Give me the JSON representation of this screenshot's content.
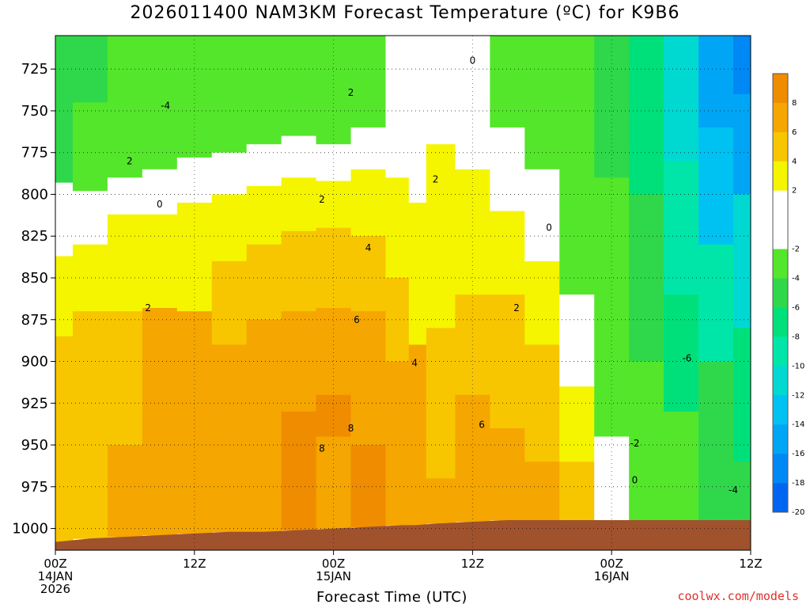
{
  "chart_data": {
    "type": "heatmap",
    "title": "2026011400 NAM3KM Forecast Temperature (ºC) for K9B6",
    "xlabel": "Forecast Time (UTC)",
    "ylabel": "",
    "credit": "coolwx.com/models",
    "x_ticks": [
      {
        "hour": 0,
        "lines": [
          "00Z",
          "14JAN",
          "2026"
        ]
      },
      {
        "hour": 12,
        "lines": [
          "12Z"
        ]
      },
      {
        "hour": 24,
        "lines": [
          "00Z",
          "15JAN"
        ]
      },
      {
        "hour": 36,
        "lines": [
          "12Z"
        ]
      },
      {
        "hour": 48,
        "lines": [
          "00Z",
          "16JAN"
        ]
      },
      {
        "hour": 60,
        "lines": [
          "12Z"
        ]
      }
    ],
    "xlim": [
      0,
      60
    ],
    "y_ticks": [
      725,
      750,
      775,
      800,
      825,
      850,
      875,
      900,
      925,
      950,
      975,
      1000
    ],
    "ylim": [
      705,
      1013
    ],
    "y_inverted": true,
    "grid": true,
    "colorbar": {
      "placement": "right",
      "levels": [
        {
          "label": "8",
          "color": "#f08c00"
        },
        {
          "label": "6",
          "color": "#f5a600"
        },
        {
          "label": "4",
          "color": "#f7c600"
        },
        {
          "label": "2",
          "color": "#f5f500"
        },
        {
          "label": "",
          "color": "#ffffff"
        },
        {
          "label": "-2",
          "color": "#ffffff"
        },
        {
          "label": "-4",
          "color": "#54e62a"
        },
        {
          "label": "-6",
          "color": "#2fd84a"
        },
        {
          "label": "-8",
          "color": "#00e07a"
        },
        {
          "label": "-10",
          "color": "#00e6a8"
        },
        {
          "label": "-12",
          "color": "#00d8d2"
        },
        {
          "label": "-14",
          "color": "#00c2f2"
        },
        {
          "label": "-16",
          "color": "#00a6f5"
        },
        {
          "label": "-18",
          "color": "#0088f5"
        },
        {
          "label": "-20",
          "color": "#0066f0"
        }
      ]
    },
    "fill_colors": {
      "ground": "#a0522d",
      "zero_contour": "#c0247a",
      "contour": "#000000"
    },
    "columns": [
      {
        "hour": 0,
        "surface": 1008,
        "bands": [
          [
            705,
            793,
            -6
          ],
          [
            793,
            837,
            -1
          ],
          [
            837,
            885,
            3
          ],
          [
            885,
            1008,
            5
          ]
        ]
      },
      {
        "hour": 3,
        "surface": 1006,
        "bands": [
          [
            705,
            745,
            -6
          ],
          [
            745,
            798,
            -4
          ],
          [
            798,
            830,
            -1
          ],
          [
            830,
            870,
            3
          ],
          [
            870,
            1006,
            5
          ]
        ]
      },
      {
        "hour": 6,
        "surface": 1005,
        "bands": [
          [
            705,
            760,
            -5
          ],
          [
            760,
            790,
            -4
          ],
          [
            790,
            812,
            -1
          ],
          [
            812,
            870,
            3
          ],
          [
            870,
            950,
            5
          ],
          [
            950,
            1005,
            7
          ]
        ]
      },
      {
        "hour": 9,
        "surface": 1004,
        "bands": [
          [
            705,
            755,
            -5
          ],
          [
            755,
            785,
            -4
          ],
          [
            785,
            812,
            -1
          ],
          [
            812,
            868,
            3
          ],
          [
            868,
            1004,
            7
          ]
        ]
      },
      {
        "hour": 12,
        "surface": 1003,
        "bands": [
          [
            705,
            740,
            -5
          ],
          [
            740,
            778,
            -4
          ],
          [
            778,
            805,
            -1
          ],
          [
            805,
            870,
            3
          ],
          [
            870,
            1003,
            7
          ]
        ]
      },
      {
        "hour": 15,
        "surface": 1002,
        "bands": [
          [
            705,
            730,
            -5
          ],
          [
            730,
            775,
            -4
          ],
          [
            775,
            800,
            -1
          ],
          [
            800,
            840,
            3
          ],
          [
            840,
            890,
            5
          ],
          [
            890,
            1002,
            7
          ]
        ]
      },
      {
        "hour": 18,
        "surface": 1002,
        "bands": [
          [
            705,
            770,
            -4
          ],
          [
            770,
            795,
            -1
          ],
          [
            795,
            830,
            3
          ],
          [
            830,
            875,
            5
          ],
          [
            875,
            1002,
            7
          ]
        ]
      },
      {
        "hour": 21,
        "surface": 1001,
        "bands": [
          [
            705,
            765,
            -4
          ],
          [
            765,
            790,
            -1
          ],
          [
            790,
            822,
            3
          ],
          [
            822,
            870,
            5
          ],
          [
            870,
            930,
            7
          ],
          [
            930,
            1001,
            9
          ]
        ]
      },
      {
        "hour": 24,
        "surface": 1000,
        "bands": [
          [
            705,
            770,
            -4
          ],
          [
            770,
            792,
            -1
          ],
          [
            792,
            820,
            3
          ],
          [
            820,
            868,
            5
          ],
          [
            868,
            920,
            7
          ],
          [
            920,
            945,
            9
          ],
          [
            945,
            1000,
            7
          ]
        ]
      },
      {
        "hour": 27,
        "surface": 999,
        "bands": [
          [
            705,
            760,
            -4
          ],
          [
            760,
            785,
            -1
          ],
          [
            785,
            825,
            3
          ],
          [
            825,
            870,
            5
          ],
          [
            870,
            950,
            7
          ],
          [
            950,
            999,
            9
          ]
        ]
      },
      {
        "hour": 30,
        "surface": 998,
        "bands": [
          [
            705,
            790,
            -1
          ],
          [
            790,
            850,
            3
          ],
          [
            850,
            900,
            5
          ],
          [
            900,
            998,
            7
          ]
        ]
      },
      {
        "hour": 31,
        "surface": 998,
        "bands": [
          [
            705,
            805,
            -1
          ],
          [
            805,
            890,
            3
          ],
          [
            890,
            998,
            7
          ]
        ]
      },
      {
        "hour": 33,
        "surface": 997,
        "bands": [
          [
            705,
            770,
            -1
          ],
          [
            770,
            880,
            3
          ],
          [
            880,
            970,
            5
          ],
          [
            970,
            997,
            7
          ]
        ]
      },
      {
        "hour": 36,
        "surface": 996,
        "bands": [
          [
            705,
            785,
            -1
          ],
          [
            785,
            860,
            3
          ],
          [
            860,
            920,
            5
          ],
          [
            920,
            996,
            7
          ]
        ]
      },
      {
        "hour": 39,
        "surface": 995,
        "bands": [
          [
            705,
            760,
            -4
          ],
          [
            760,
            810,
            -1
          ],
          [
            810,
            860,
            3
          ],
          [
            860,
            940,
            5
          ],
          [
            940,
            995,
            7
          ]
        ]
      },
      {
        "hour": 42,
        "surface": 995,
        "bands": [
          [
            705,
            785,
            -4
          ],
          [
            785,
            840,
            -1
          ],
          [
            840,
            890,
            3
          ],
          [
            890,
            960,
            5
          ],
          [
            960,
            995,
            7
          ]
        ]
      },
      {
        "hour": 45,
        "surface": 995,
        "bands": [
          [
            705,
            790,
            -5
          ],
          [
            790,
            860,
            -4
          ],
          [
            860,
            915,
            -1
          ],
          [
            915,
            960,
            3
          ],
          [
            960,
            995,
            5
          ]
        ]
      },
      {
        "hour": 48,
        "surface": 995,
        "bands": [
          [
            705,
            790,
            -7
          ],
          [
            790,
            880,
            -5
          ],
          [
            880,
            945,
            -4
          ],
          [
            945,
            995,
            -1
          ]
        ]
      },
      {
        "hour": 51,
        "surface": 995,
        "bands": [
          [
            705,
            800,
            -9
          ],
          [
            800,
            900,
            -7
          ],
          [
            900,
            960,
            -5
          ],
          [
            960,
            995,
            -4
          ]
        ]
      },
      {
        "hour": 54,
        "surface": 995,
        "bands": [
          [
            705,
            780,
            -12
          ],
          [
            780,
            860,
            -10
          ],
          [
            860,
            930,
            -8
          ],
          [
            930,
            995,
            -5
          ]
        ]
      },
      {
        "hour": 57,
        "surface": 995,
        "bands": [
          [
            705,
            760,
            -16
          ],
          [
            760,
            830,
            -14
          ],
          [
            830,
            900,
            -11
          ],
          [
            900,
            995,
            -7
          ]
        ]
      },
      {
        "hour": 60,
        "surface": 995,
        "bands": [
          [
            705,
            740,
            -19
          ],
          [
            740,
            800,
            -17
          ],
          [
            800,
            880,
            -13
          ],
          [
            880,
            960,
            -9
          ],
          [
            960,
            995,
            -6
          ]
        ]
      }
    ],
    "contour_labels": [
      {
        "text": "0",
        "hour": 36.0,
        "p": 720
      },
      {
        "text": "2",
        "hour": 25.5,
        "p": 739
      },
      {
        "text": "-4",
        "hour": 9.5,
        "p": 747
      },
      {
        "text": "2",
        "hour": 6.4,
        "p": 780
      },
      {
        "text": "2",
        "hour": 32.8,
        "p": 791
      },
      {
        "text": "0",
        "hour": 9.0,
        "p": 806
      },
      {
        "text": "2",
        "hour": 23.0,
        "p": 803
      },
      {
        "text": "0",
        "hour": 42.6,
        "p": 820
      },
      {
        "text": "4",
        "hour": 27.0,
        "p": 832
      },
      {
        "text": "2",
        "hour": 8.0,
        "p": 868
      },
      {
        "text": "2",
        "hour": 39.8,
        "p": 868
      },
      {
        "text": "6",
        "hour": 26.0,
        "p": 875
      },
      {
        "text": "4",
        "hour": 31.0,
        "p": 901
      },
      {
        "text": "-6",
        "hour": 54.5,
        "p": 898
      },
      {
        "text": "6",
        "hour": 36.8,
        "p": 938
      },
      {
        "text": "8",
        "hour": 25.5,
        "p": 940
      },
      {
        "text": "8",
        "hour": 23.0,
        "p": 952
      },
      {
        "text": "-2",
        "hour": 50.0,
        "p": 949
      },
      {
        "text": "0",
        "hour": 50.0,
        "p": 971
      },
      {
        "text": "-4",
        "hour": 58.5,
        "p": 977
      }
    ]
  }
}
